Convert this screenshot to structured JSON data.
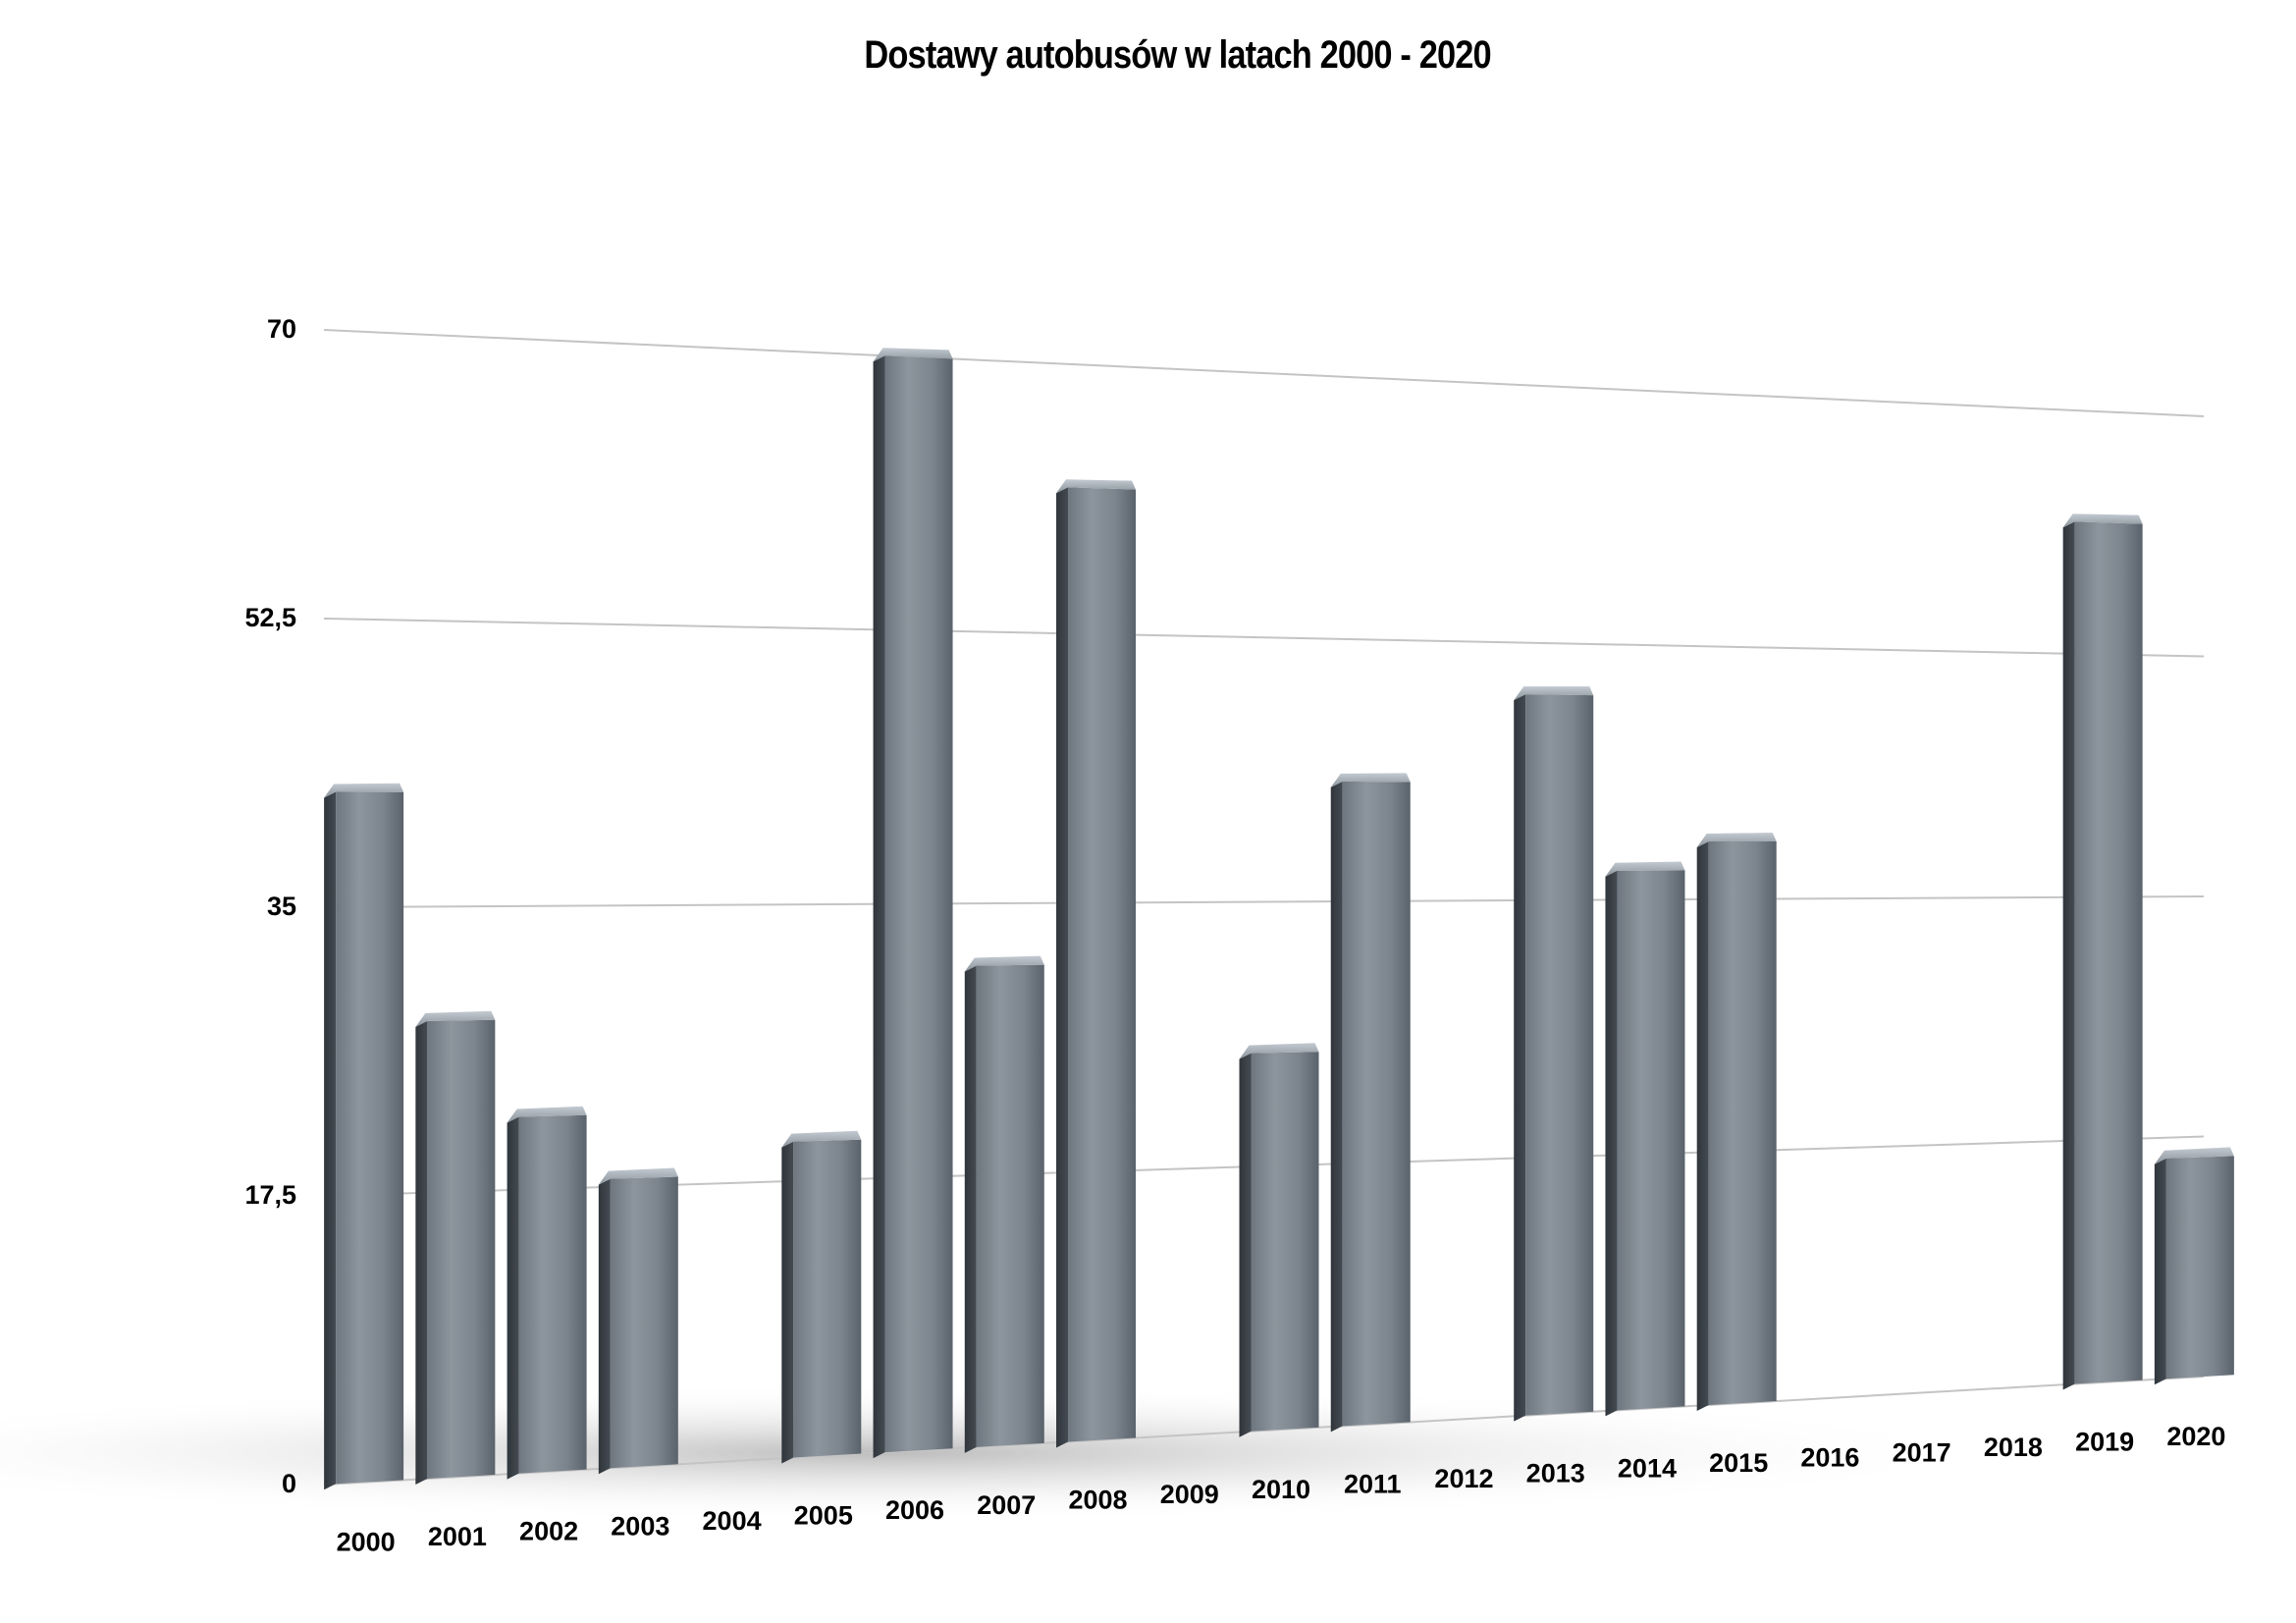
{
  "chart_data": {
    "type": "bar",
    "title": "Dostawy autobusów  w latach 2000 - 2020",
    "xlabel": "",
    "ylabel": "",
    "ylim": [
      0,
      70
    ],
    "yticks": [
      "0",
      "17,5",
      "35",
      "52,5",
      "70"
    ],
    "grid": true,
    "legend": "none",
    "categories": [
      "2000",
      "2001",
      "2002",
      "2003",
      "2004",
      "2005",
      "2006",
      "2007",
      "2008",
      "2009",
      "2010",
      "2011",
      "2012",
      "2013",
      "2014",
      "2015",
      "2016",
      "2017",
      "2018",
      "2019",
      "2020"
    ],
    "values": [
      42,
      28,
      22,
      18,
      0,
      20,
      70,
      31,
      62,
      0,
      25,
      43,
      0,
      49,
      37,
      39,
      0,
      0,
      0,
      62,
      16
    ],
    "colors": {
      "bar_face_light": "#8a929b",
      "bar_face_dark": "#5c646d",
      "bar_side": "#3a4047",
      "bar_top": "#a8b0b8",
      "grid": "#c4c4c4"
    }
  }
}
